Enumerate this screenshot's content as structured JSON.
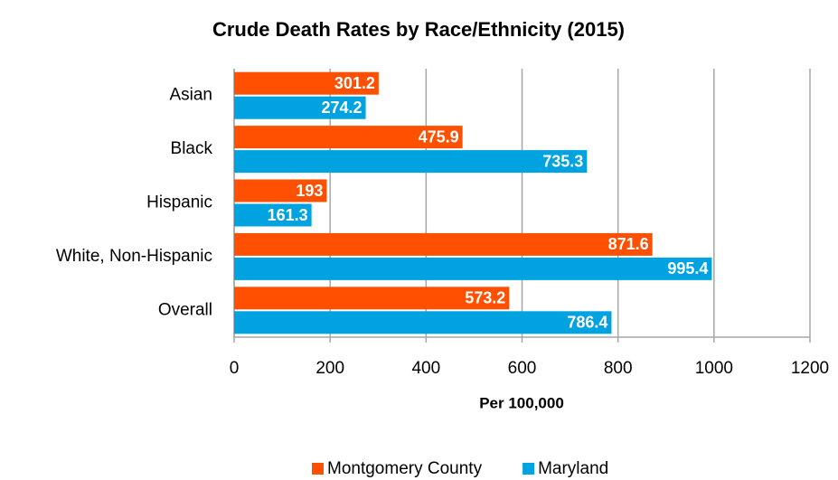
{
  "chart_data": {
    "type": "barh",
    "title": "Crude Death Rates by Race/Ethnicity (2015)",
    "xlabel": "Per 100,000",
    "categories": [
      "Asian",
      "Black",
      "Hispanic",
      "White, Non-Hispanic",
      "Overall"
    ],
    "series": [
      {
        "name": "Montgomery County",
        "color": "#fe5000",
        "values": [
          301.2,
          475.9,
          193,
          871.6,
          573.2
        ]
      },
      {
        "name": "Maryland",
        "color": "#00a2e0",
        "values": [
          274.2,
          735.3,
          161.3,
          995.4,
          786.4
        ]
      }
    ],
    "xlim": [
      0,
      1200
    ],
    "xticks": [
      0,
      200,
      400,
      600,
      800,
      1000,
      1200
    ],
    "grid": true,
    "legend": "bottom"
  }
}
